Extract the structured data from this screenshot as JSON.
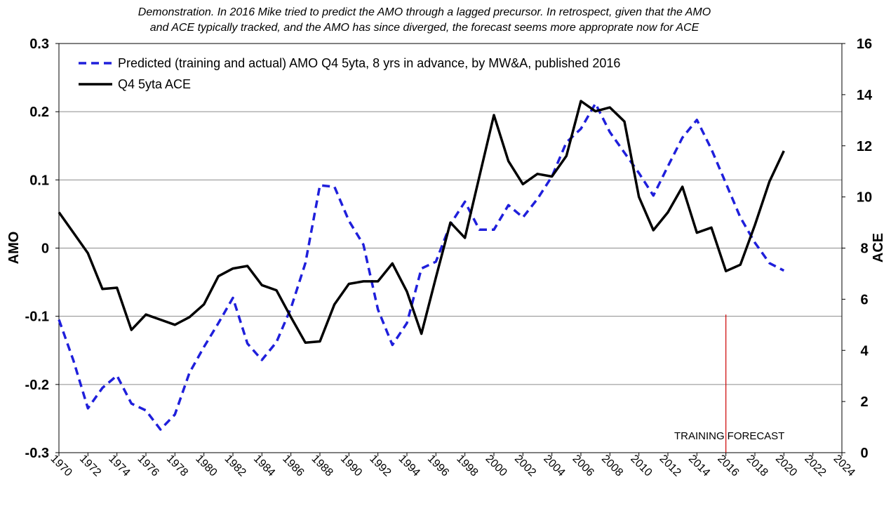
{
  "chart_data": {
    "type": "line",
    "title": [
      "Demonstration.  In 2016 Mike tried to predict the AMO through  a lagged precursor.  In retrospect, given that the AMO",
      "and ACE typically tracked, and the AMO has since diverged, the forecast seems more approprate  now for ACE"
    ],
    "xlabel": "",
    "ylabel_left": "AMO",
    "ylabel_right": "ACE",
    "xlim": [
      1970,
      2024
    ],
    "ylim_left": [
      -0.3,
      0.3
    ],
    "ylim_right": [
      0,
      16
    ],
    "x_ticks": [
      "1970",
      "1972",
      "1974",
      "1976",
      "1978",
      "1980",
      "1982",
      "1984",
      "1986",
      "1988",
      "1990",
      "1992",
      "1994",
      "1996",
      "1998",
      "2000",
      "2002",
      "2004",
      "2006",
      "2008",
      "2010",
      "2012",
      "2014",
      "2016",
      "2018",
      "2020",
      "2022",
      "2024"
    ],
    "y_ticks_left": [
      "0.3",
      "0.2",
      "0.1",
      "0",
      "-0.1",
      "-0.2",
      "-0.3"
    ],
    "y_ticks_right": [
      "16",
      "14",
      "12",
      "10",
      "8",
      "6",
      "4",
      "2",
      "0"
    ],
    "grid": "horizontal",
    "legend_position": "top-left",
    "series": [
      {
        "name": "Predicted (training and actual) AMO Q4 5yta, 8 yrs in advance, by MW&A, published 2016",
        "axis": "left",
        "style": "dashed",
        "color": "#1f1fdb",
        "x": [
          1970,
          1971,
          1972,
          1973,
          1974,
          1975,
          1976,
          1977,
          1978,
          1979,
          1980,
          1981,
          1982,
          1983,
          1984,
          1985,
          1986,
          1987,
          1988,
          1989,
          1990,
          1991,
          1992,
          1993,
          1994,
          1995,
          1996,
          1997,
          1998,
          1999,
          2000,
          2001,
          2002,
          2003,
          2004,
          2005,
          2006,
          2007,
          2008,
          2009,
          2010,
          2011,
          2012,
          2013,
          2014,
          2015,
          2016,
          2017,
          2018,
          2019,
          2020
        ],
        "y": [
          -0.105,
          -0.165,
          -0.235,
          -0.205,
          -0.187,
          -0.228,
          -0.238,
          -0.266,
          -0.244,
          -0.183,
          -0.145,
          -0.11,
          -0.073,
          -0.14,
          -0.164,
          -0.138,
          -0.088,
          -0.022,
          0.092,
          0.09,
          0.04,
          0.005,
          -0.09,
          -0.142,
          -0.11,
          -0.03,
          -0.02,
          0.035,
          0.068,
          0.027,
          0.027,
          0.063,
          0.045,
          0.072,
          0.105,
          0.155,
          0.175,
          0.212,
          0.17,
          0.14,
          0.11,
          0.077,
          0.12,
          0.162,
          0.188,
          0.145,
          0.095,
          0.045,
          0.008,
          -0.022,
          -0.033
        ]
      },
      {
        "name": "Q4 5yta ACE",
        "axis": "right",
        "style": "solid",
        "color": "#000000",
        "x": [
          1970,
          1971,
          1972,
          1973,
          1974,
          1975,
          1976,
          1977,
          1978,
          1979,
          1980,
          1981,
          1982,
          1983,
          1984,
          1985,
          1986,
          1987,
          1988,
          1989,
          1990,
          1991,
          1992,
          1993,
          1994,
          1995,
          1996,
          1997,
          1998,
          1999,
          2000,
          2001,
          2002,
          2003,
          2004,
          2005,
          2006,
          2007,
          2008,
          2009,
          2010,
          2011,
          2012,
          2013,
          2014,
          2015,
          2016,
          2017,
          2018,
          2019,
          2020
        ],
        "y": [
          9.4,
          8.6,
          7.8,
          6.4,
          6.45,
          4.8,
          5.4,
          5.2,
          5.0,
          5.3,
          5.8,
          6.9,
          7.2,
          7.3,
          6.55,
          6.35,
          5.3,
          4.3,
          4.35,
          5.8,
          6.6,
          6.7,
          6.7,
          7.4,
          6.3,
          4.65,
          6.85,
          9.0,
          8.4,
          10.8,
          13.2,
          11.4,
          10.5,
          10.9,
          10.8,
          11.6,
          13.75,
          13.35,
          13.5,
          12.95,
          10.0,
          8.7,
          9.4,
          10.4,
          8.6,
          8.8,
          7.1,
          7.35,
          8.9,
          10.6,
          11.8
        ]
      }
    ],
    "annotations": {
      "vertical_line_x": 2016,
      "vertical_line_color": "#cc0000",
      "left_label": "TRAINING",
      "right_label": "FORECAST"
    }
  }
}
